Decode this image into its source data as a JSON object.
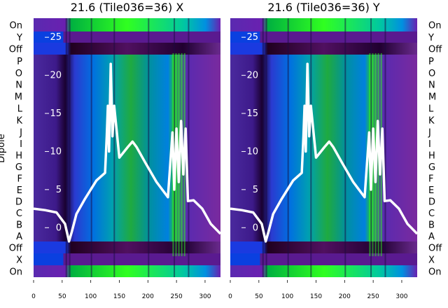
{
  "chart_data": [
    {
      "type": "heatmap",
      "panel": "X",
      "title": "21.6 (Tile036=36) X",
      "x_ticks": [
        0,
        50,
        100,
        150,
        200,
        250,
        300
      ],
      "xlim": [
        0,
        327
      ],
      "y_ticks": [
        0,
        5,
        10,
        15,
        20,
        25
      ],
      "ylim": [
        -6.5,
        27.5
      ],
      "left_ylabel": "Dipole",
      "row_labels": [
        "On",
        "Y",
        "Off",
        "P",
        "O",
        "N",
        "M",
        "L",
        "K",
        "J",
        "I",
        "H",
        "G",
        "F",
        "E",
        "D",
        "C",
        "B",
        "A",
        "Off",
        "X",
        "On"
      ],
      "band_edges_x": [
        56,
        62,
        100,
        140,
        200,
        245,
        270
      ],
      "overlay_curve": {
        "color": "#ffffff",
        "x": [
          0,
          20,
          40,
          55,
          62,
          67,
          75,
          90,
          110,
          125,
          128,
          130,
          132,
          135,
          138,
          141,
          150,
          165,
          173,
          180,
          195,
          215,
          235,
          243,
          246,
          250,
          254,
          258,
          262,
          266,
          270,
          280,
          295,
          310,
          327
        ],
        "y": [
          2.5,
          2.3,
          2.0,
          0.5,
          -1.8,
          -0.5,
          1.8,
          3.8,
          6.2,
          7.2,
          12,
          16,
          10,
          21.5,
          12,
          16,
          9.2,
          10.6,
          11.3,
          10.6,
          8.6,
          6.0,
          4.0,
          12.5,
          5,
          13,
          6,
          14,
          7,
          13,
          3.5,
          3.6,
          2.5,
          0.5,
          -0.8
        ]
      }
    },
    {
      "type": "heatmap",
      "panel": "Y",
      "title": "21.6 (Tile036=36) Y",
      "x_ticks": [
        0,
        50,
        100,
        150,
        200,
        250,
        300
      ],
      "xlim": [
        0,
        327
      ],
      "y_ticks": [
        0,
        5,
        10,
        15,
        20,
        25
      ],
      "ylim": [
        -6.5,
        27.5
      ],
      "right_ylabel": "",
      "row_labels": [
        "On",
        "Y",
        "Off",
        "P",
        "O",
        "N",
        "M",
        "L",
        "K",
        "J",
        "I",
        "H",
        "G",
        "F",
        "E",
        "D",
        "C",
        "B",
        "A",
        "Off",
        "X",
        "On"
      ],
      "band_edges_x": [
        56,
        62,
        100,
        140,
        200,
        245,
        270
      ],
      "overlay_curve": {
        "color": "#ffffff",
        "x": [
          0,
          20,
          40,
          55,
          62,
          67,
          75,
          90,
          110,
          125,
          128,
          130,
          132,
          135,
          138,
          141,
          150,
          165,
          173,
          180,
          195,
          215,
          235,
          243,
          246,
          250,
          254,
          258,
          262,
          266,
          270,
          280,
          295,
          310,
          327
        ],
        "y": [
          2.5,
          2.3,
          2.0,
          0.5,
          -1.8,
          -0.5,
          1.8,
          3.8,
          6.2,
          7.2,
          12,
          16,
          10,
          21.5,
          12,
          16,
          9.2,
          10.6,
          11.3,
          10.6,
          8.6,
          6.0,
          4.0,
          12.5,
          5,
          13,
          6,
          14,
          7,
          13,
          3.5,
          3.6,
          2.5,
          0.5,
          -0.8
        ]
      }
    }
  ]
}
